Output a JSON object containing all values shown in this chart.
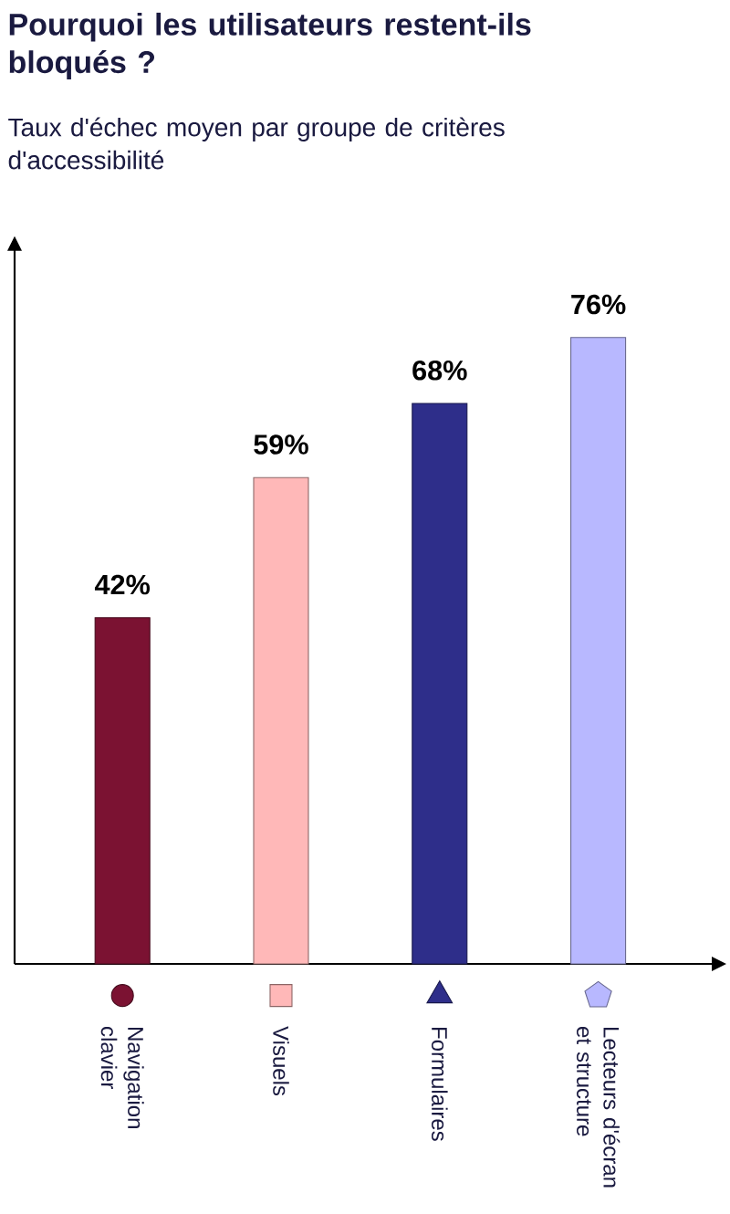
{
  "chart_data": {
    "type": "bar",
    "title": "Pourquoi les utilisateurs restent-ils bloqués ?",
    "subtitle": "Taux d'échec moyen par groupe de critères d'accessibilité",
    "categories": [
      "Navigation clavier",
      "Visuels",
      "Formulaires",
      "Lecteurs d'écran et structure"
    ],
    "values": [
      42,
      59,
      68,
      76
    ],
    "value_labels": [
      "42%",
      "59%",
      "68%",
      "76%"
    ],
    "colors": [
      "#7b1232",
      "#ffb8b8",
      "#2e2e8a",
      "#b8b8ff"
    ],
    "grid": false
  }
}
